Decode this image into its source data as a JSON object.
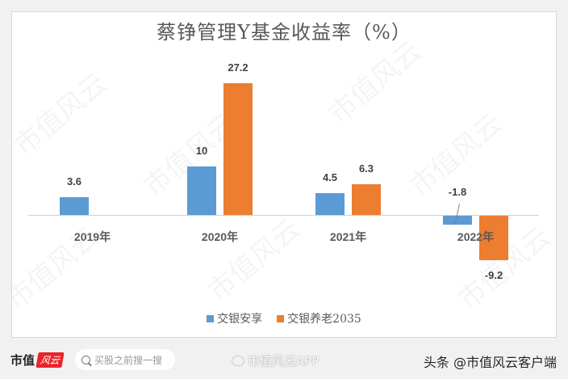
{
  "chart_data": {
    "type": "bar",
    "title": "蔡铮管理Y基金收益率（%）",
    "categories": [
      "2019年",
      "2020年",
      "2021年",
      "2022年"
    ],
    "series": [
      {
        "name": "交银安享",
        "color": "#5b9bd5",
        "values": [
          3.6,
          10,
          4.5,
          -1.8
        ]
      },
      {
        "name": "交银养老2035",
        "color": "#ed7d31",
        "values": [
          null,
          27.2,
          6.3,
          -9.2
        ]
      }
    ],
    "labels": {
      "s0": [
        "3.6",
        "10",
        "4.5",
        "-1.8"
      ],
      "s1": [
        "",
        "27.2",
        "6.3",
        "-9.2"
      ]
    },
    "xlabel": "",
    "ylabel": "",
    "ylim": [
      -10,
      30
    ],
    "grid": false,
    "legend_position": "bottom"
  },
  "watermark": "市值风云",
  "footer": {
    "logo_text": "市值",
    "logo_badge": "风云",
    "search_placeholder": "买股之前搜一搜",
    "weibo_text": "市值风云APP",
    "toutiao_text": "头条 @市值风云客户端"
  }
}
